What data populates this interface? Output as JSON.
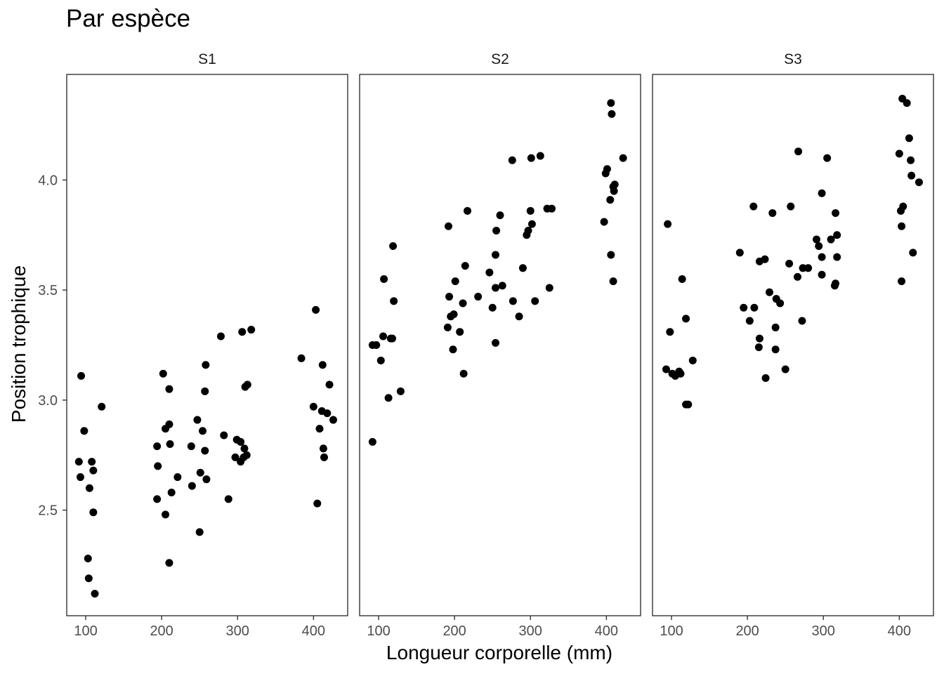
{
  "chart_data": {
    "type": "scatter",
    "title": "Par espèce",
    "xlabel": "Longueur corporelle (mm)",
    "ylabel": "Position trophique",
    "xlim": [
      75,
      445
    ],
    "ylim": [
      2.02,
      4.48
    ],
    "x_ticks": [
      100,
      200,
      300,
      400
    ],
    "y_ticks": [
      2.5,
      3.0,
      3.5,
      4.0
    ],
    "y_tick_labels": [
      "2.5",
      "3.0",
      "3.5",
      "4.0"
    ],
    "grid": false,
    "point_color": "#000000",
    "facets": [
      {
        "name": "S1",
        "points": [
          [
            91,
            2.72
          ],
          [
            94,
            3.11
          ],
          [
            98,
            2.86
          ],
          [
            93,
            2.65
          ],
          [
            108,
            2.72
          ],
          [
            105,
            2.6
          ],
          [
            110,
            2.68
          ],
          [
            110,
            2.49
          ],
          [
            121,
            2.97
          ],
          [
            103,
            2.28
          ],
          [
            104,
            2.19
          ],
          [
            112,
            2.12
          ],
          [
            202,
            3.12
          ],
          [
            210,
            3.05
          ],
          [
            205,
            2.87
          ],
          [
            210,
            2.89
          ],
          [
            194,
            2.79
          ],
          [
            211,
            2.8
          ],
          [
            195,
            2.7
          ],
          [
            221,
            2.65
          ],
          [
            213,
            2.58
          ],
          [
            194,
            2.55
          ],
          [
            205,
            2.48
          ],
          [
            210,
            2.26
          ],
          [
            278,
            3.29
          ],
          [
            306,
            3.31
          ],
          [
            318,
            3.32
          ],
          [
            258,
            3.16
          ],
          [
            310,
            3.06
          ],
          [
            313,
            3.07
          ],
          [
            257,
            3.04
          ],
          [
            247,
            2.91
          ],
          [
            254,
            2.86
          ],
          [
            282,
            2.84
          ],
          [
            299,
            2.82
          ],
          [
            304,
            2.81
          ],
          [
            239,
            2.79
          ],
          [
            257,
            2.77
          ],
          [
            309,
            2.78
          ],
          [
            297,
            2.74
          ],
          [
            308,
            2.74
          ],
          [
            312,
            2.75
          ],
          [
            304,
            2.72
          ],
          [
            251,
            2.67
          ],
          [
            259,
            2.64
          ],
          [
            240,
            2.61
          ],
          [
            288,
            2.55
          ],
          [
            250,
            2.4
          ],
          [
            403,
            3.41
          ],
          [
            384,
            3.19
          ],
          [
            412,
            3.16
          ],
          [
            421,
            3.07
          ],
          [
            400,
            2.97
          ],
          [
            411,
            2.95
          ],
          [
            418,
            2.94
          ],
          [
            426,
            2.91
          ],
          [
            408,
            2.87
          ],
          [
            413,
            2.78
          ],
          [
            414,
            2.74
          ],
          [
            405,
            2.53
          ]
        ]
      },
      {
        "name": "S2",
        "points": [
          [
            92,
            3.25
          ],
          [
            97,
            3.25
          ],
          [
            103,
            3.18
          ],
          [
            106,
            3.29
          ],
          [
            107,
            3.55
          ],
          [
            116,
            3.28
          ],
          [
            118,
            3.28
          ],
          [
            119,
            3.7
          ],
          [
            120,
            3.45
          ],
          [
            113,
            3.01
          ],
          [
            129,
            3.04
          ],
          [
            92,
            2.81
          ],
          [
            192,
            3.79
          ],
          [
            217,
            3.86
          ],
          [
            193,
            3.47
          ],
          [
            201,
            3.54
          ],
          [
            214,
            3.61
          ],
          [
            195,
            3.38
          ],
          [
            199,
            3.39
          ],
          [
            211,
            3.44
          ],
          [
            191,
            3.33
          ],
          [
            207,
            3.31
          ],
          [
            198,
            3.23
          ],
          [
            212,
            3.12
          ],
          [
            260,
            3.84
          ],
          [
            255,
            3.77
          ],
          [
            276,
            4.09
          ],
          [
            301,
            4.1
          ],
          [
            313,
            4.11
          ],
          [
            300,
            3.86
          ],
          [
            322,
            3.87
          ],
          [
            328,
            3.87
          ],
          [
            302,
            3.8
          ],
          [
            297,
            3.77
          ],
          [
            295,
            3.75
          ],
          [
            254,
            3.66
          ],
          [
            246,
            3.58
          ],
          [
            290,
            3.6
          ],
          [
            263,
            3.52
          ],
          [
            254,
            3.51
          ],
          [
            325,
            3.51
          ],
          [
            231,
            3.47
          ],
          [
            277,
            3.45
          ],
          [
            306,
            3.45
          ],
          [
            250,
            3.42
          ],
          [
            285,
            3.38
          ],
          [
            254,
            3.26
          ],
          [
            397,
            3.81
          ],
          [
            406,
            4.35
          ],
          [
            407,
            4.3
          ],
          [
            422,
            4.1
          ],
          [
            401,
            4.05
          ],
          [
            399,
            4.03
          ],
          [
            411,
            3.98
          ],
          [
            409,
            3.97
          ],
          [
            410,
            3.95
          ],
          [
            405,
            3.91
          ],
          [
            406,
            3.66
          ],
          [
            409,
            3.54
          ]
        ]
      },
      {
        "name": "S3",
        "points": [
          [
            95,
            3.8
          ],
          [
            98,
            3.31
          ],
          [
            93,
            3.14
          ],
          [
            101,
            3.12
          ],
          [
            105,
            3.11
          ],
          [
            110,
            3.13
          ],
          [
            112,
            3.12
          ],
          [
            114,
            3.55
          ],
          [
            119,
            3.37
          ],
          [
            128,
            3.18
          ],
          [
            119,
            2.98
          ],
          [
            122,
            2.98
          ],
          [
            190,
            3.67
          ],
          [
            208,
            3.88
          ],
          [
            216,
            3.63
          ],
          [
            223,
            3.64
          ],
          [
            233,
            3.85
          ],
          [
            257,
            3.88
          ],
          [
            195,
            3.42
          ],
          [
            209,
            3.42
          ],
          [
            203,
            3.36
          ],
          [
            216,
            3.28
          ],
          [
            215,
            3.24
          ],
          [
            229,
            3.49
          ],
          [
            238,
            3.46
          ],
          [
            243,
            3.44
          ],
          [
            237,
            3.33
          ],
          [
            237,
            3.23
          ],
          [
            224,
            3.1
          ],
          [
            250,
            3.14
          ],
          [
            267,
            4.13
          ],
          [
            305,
            4.1
          ],
          [
            298,
            3.94
          ],
          [
            316,
            3.85
          ],
          [
            291,
            3.73
          ],
          [
            294,
            3.7
          ],
          [
            310,
            3.73
          ],
          [
            318,
            3.75
          ],
          [
            255,
            3.62
          ],
          [
            273,
            3.6
          ],
          [
            280,
            3.6
          ],
          [
            298,
            3.65
          ],
          [
            318,
            3.65
          ],
          [
            266,
            3.56
          ],
          [
            298,
            3.57
          ],
          [
            316,
            3.53
          ],
          [
            315,
            3.52
          ],
          [
            272,
            3.36
          ],
          [
            404,
            4.37
          ],
          [
            410,
            4.35
          ],
          [
            413,
            4.19
          ],
          [
            400,
            4.12
          ],
          [
            415,
            4.09
          ],
          [
            416,
            4.02
          ],
          [
            426,
            3.99
          ],
          [
            405,
            3.88
          ],
          [
            402,
            3.86
          ],
          [
            403,
            3.79
          ],
          [
            418,
            3.67
          ],
          [
            403,
            3.54
          ]
        ]
      }
    ]
  }
}
